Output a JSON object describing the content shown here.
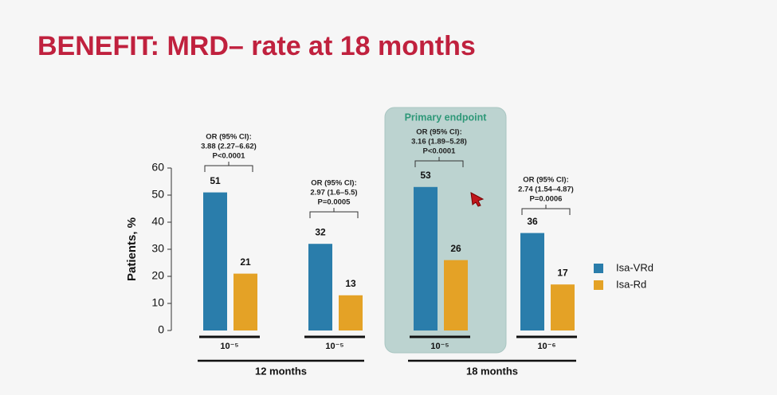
{
  "chart_data": {
    "type": "bar",
    "title": "BENEFIT: MRD– rate at 18 months",
    "y_label": "Patients, %",
    "categories": [
      "10⁻⁵",
      "10⁻⁵",
      "10⁻⁵",
      "10⁻⁶"
    ],
    "group_labels": [
      "12 months",
      "18 months"
    ],
    "highlight_label": "Primary endpoint",
    "series": [
      {
        "name": "Isa-VRd",
        "color": "#2a7dab",
        "values": [
          51,
          32,
          53,
          36
        ]
      },
      {
        "name": "Isa-Rd",
        "color": "#e4a226",
        "values": [
          21,
          13,
          26,
          17
        ]
      }
    ],
    "annotations": [
      [
        "OR (95% CI):",
        "3.88 (2.27–6.62)",
        "P<0.0001"
      ],
      [
        "OR (95% CI):",
        "2.97 (1.6–5.5)",
        "P=0.0005"
      ],
      [
        "OR (95% CI):",
        "3.16 (1.89–5.28)",
        "P<0.0001"
      ],
      [
        "OR (95% CI):",
        "2.74 (1.54–4.87)",
        "P=0.0006"
      ]
    ],
    "ylim": [
      0,
      60
    ],
    "yticks": [
      0,
      10,
      20,
      30,
      40,
      50,
      60
    ],
    "grid": false,
    "legend": "right"
  }
}
